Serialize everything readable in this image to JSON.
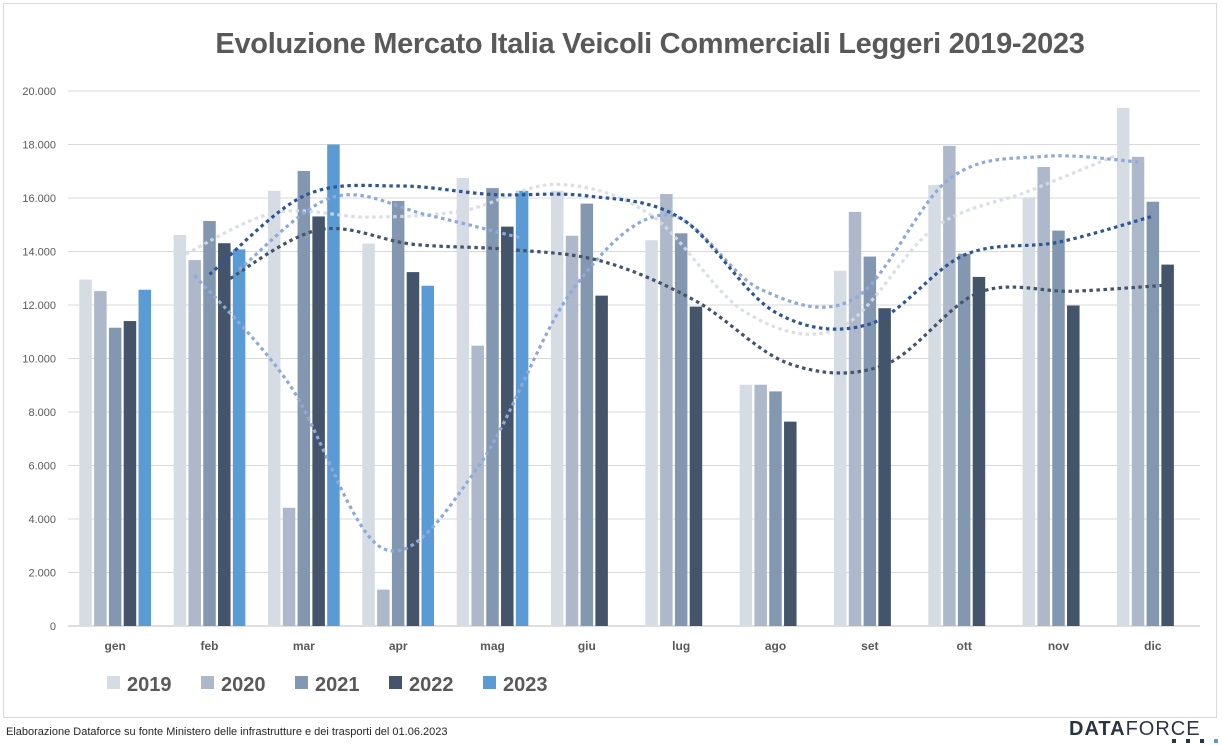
{
  "title": "Evoluzione Mercato Italia Veicoli Commerciali Leggeri 2019-2023",
  "footer": {
    "source": "Elaborazione Dataforce su fonte Ministero delle infrastrutture e dei trasporti del 01.06.2023",
    "brand_part1": "DATA",
    "brand_part2": "FORCE"
  },
  "colors": {
    "2019": "#d6dce4",
    "2020": "#adb9ca",
    "2021": "#8497b0",
    "2022": "#44546a",
    "2023": "#5b9bd5",
    "trend_2020": "#8eaadb",
    "trend_2021": "#2f5597",
    "grid": "#d9d9d9",
    "text": "#595959"
  },
  "chart_data": {
    "type": "bar",
    "title": "Evoluzione Mercato Italia Veicoli Commerciali Leggeri 2019-2023",
    "categories": [
      "gen",
      "feb",
      "mar",
      "apr",
      "mag",
      "giu",
      "lug",
      "ago",
      "set",
      "ott",
      "nov",
      "dic"
    ],
    "ylim": [
      0,
      20000
    ],
    "yticks": [
      0,
      2000,
      4000,
      6000,
      8000,
      10000,
      12000,
      14000,
      16000,
      18000,
      20000
    ],
    "ytick_labels": [
      "0",
      "2.000",
      "4.000",
      "6.000",
      "8.000",
      "10.000",
      "12.000",
      "14.000",
      "16.000",
      "18.000",
      "20.000"
    ],
    "grid": true,
    "legend_position": "bottom-left",
    "series": [
      {
        "name": "2019",
        "values": [
          12950,
          14620,
          16270,
          14300,
          16750,
          16270,
          14420,
          9020,
          13280,
          16490,
          16030,
          19370
        ]
      },
      {
        "name": "2020",
        "values": [
          12520,
          13680,
          4420,
          1360,
          10480,
          14590,
          16150,
          9020,
          15480,
          17950,
          17160,
          17540
        ]
      },
      {
        "name": "2021",
        "values": [
          11150,
          15140,
          17010,
          15890,
          16370,
          15790,
          14680,
          8770,
          13810,
          13920,
          14780,
          15860
        ]
      },
      {
        "name": "2022",
        "values": [
          11400,
          14310,
          15310,
          13230,
          14930,
          12350,
          11940,
          7640,
          11880,
          13050,
          11980,
          13510
        ]
      },
      {
        "name": "2023",
        "values": [
          12570,
          14080,
          18000,
          12720,
          16270,
          null,
          null,
          null,
          null,
          null,
          null,
          null
        ]
      }
    ],
    "trendlines": "moving average (dotted) per series"
  }
}
